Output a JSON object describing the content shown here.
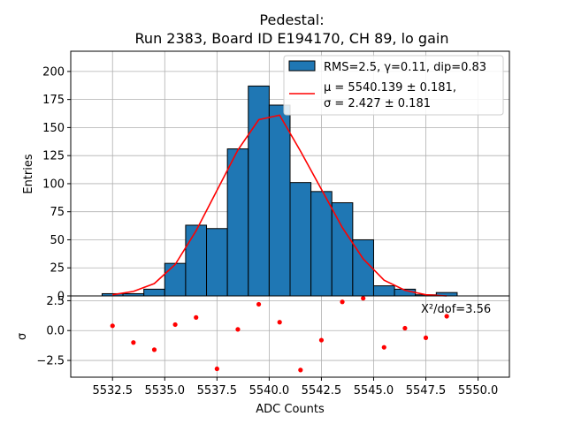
{
  "chart_data": {
    "type": "bar",
    "title_line1": "Pedestal:",
    "title_line2": "Run 2383, Board ID E194170, CH 89, lo gain",
    "xlabel": "ADC Counts",
    "ylabel_top": "Entries",
    "ylabel_bottom": "σ",
    "xlim": [
      5530.5,
      5551.5
    ],
    "ylim_top": [
      0,
      218
    ],
    "ylim_bottom": [
      -3.9,
      2.9
    ],
    "xticks": [
      5532.5,
      5535.0,
      5537.5,
      5540.0,
      5542.5,
      5545.0,
      5547.5,
      5550.0
    ],
    "xtick_labels": [
      "5532.5",
      "5535.0",
      "5537.5",
      "5540.0",
      "5542.5",
      "5545.0",
      "5547.5",
      "5550.0"
    ],
    "yticks_top": [
      0,
      25,
      50,
      75,
      100,
      125,
      150,
      175,
      200
    ],
    "yticks_bottom": [
      -2.5,
      0.0,
      2.5
    ],
    "ytick_labels_bottom": [
      "−2.5",
      "0.0",
      "2.5"
    ],
    "grid": true,
    "legend_position": "top-right",
    "histogram": {
      "name": "RMS=2.5, γ=0.11, dip=0.83",
      "bin_edges": [
        5532,
        5533,
        5534,
        5535,
        5536,
        5537,
        5538,
        5539,
        5540,
        5541,
        5542,
        5543,
        5544,
        5545,
        5546,
        5547,
        5548,
        5549
      ],
      "values": [
        2,
        2,
        6,
        29,
        63,
        60,
        131,
        187,
        170,
        101,
        93,
        83,
        50,
        9,
        6,
        1,
        3
      ],
      "color": "#1f77b4"
    },
    "fit": {
      "name_line1": "μ = 5540.139 ± 0.181,",
      "name_line2": "σ = 2.427 ± 0.181",
      "x": [
        5532.5,
        5533.5,
        5534.5,
        5535.5,
        5536.5,
        5537.5,
        5538.5,
        5539.5,
        5540.5,
        5541.5,
        5542.5,
        5543.5,
        5544.5,
        5545.5,
        5546.5,
        5547.5,
        5548.5
      ],
      "y": [
        1,
        4,
        11,
        28,
        58,
        94,
        130,
        157,
        161,
        129,
        95,
        61,
        33,
        14,
        5,
        1,
        0
      ],
      "color": "#ff0000"
    },
    "residuals": {
      "x": [
        5532.5,
        5533.5,
        5534.5,
        5535.5,
        5536.5,
        5537.5,
        5538.5,
        5539.5,
        5540.5,
        5541.5,
        5542.5,
        5543.5,
        5544.5,
        5545.5,
        5546.5,
        5547.5,
        5548.5
      ],
      "y": [
        0.4,
        -1.0,
        -1.6,
        0.5,
        1.1,
        -3.2,
        0.1,
        2.2,
        0.7,
        -3.3,
        -0.8,
        2.4,
        2.7,
        -1.4,
        0.2,
        -0.6,
        1.2
      ],
      "color": "#ff0000"
    },
    "chi2_label": "X²/dof=3.56"
  }
}
